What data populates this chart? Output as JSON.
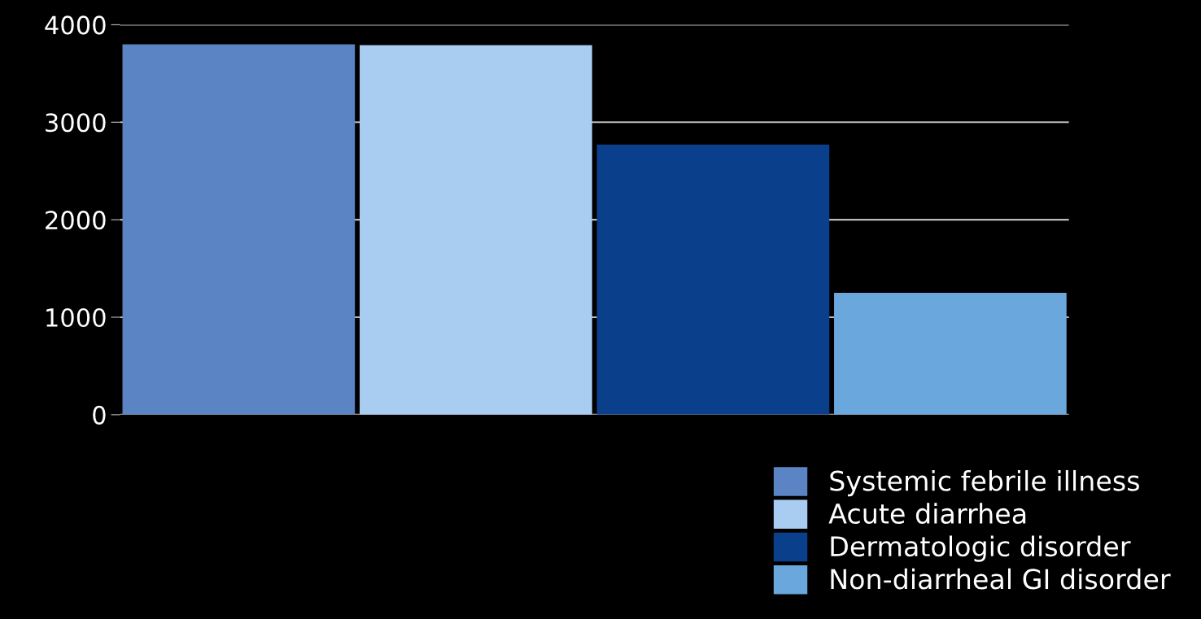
{
  "chart_data": {
    "type": "bar",
    "categories": [
      null,
      null,
      null,
      null
    ],
    "series": [
      {
        "name": "Systemic febrile illness",
        "color": "#5b84c4",
        "values": [
          3800,
          null,
          null,
          null
        ]
      },
      {
        "name": "Acute diarrhea",
        "color": "#a9cdf0",
        "values": [
          null,
          3790,
          null,
          null
        ]
      },
      {
        "name": "Dermatologic disorder",
        "color": "#0a3f8c",
        "values": [
          null,
          null,
          2770,
          null
        ]
      },
      {
        "name": "Non-diarrheal GI disorder",
        "color": "#69a7dc",
        "values": [
          null,
          null,
          null,
          1250
        ]
      }
    ],
    "ylim": [
      0,
      4000
    ],
    "yticks": [
      0,
      1000,
      2000,
      3000,
      4000
    ],
    "grid": "y",
    "legend": "bottom right"
  }
}
